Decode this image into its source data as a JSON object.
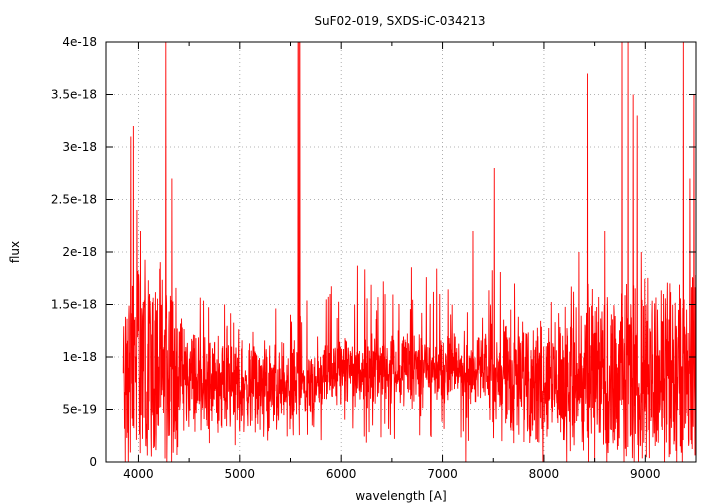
{
  "chart_data": {
    "type": "line",
    "title": "SuF02-019, SXDS-iC-034213",
    "xlabel": "wavelength [A]",
    "ylabel": "flux",
    "xlim": [
      3680,
      9500
    ],
    "ylim": [
      0,
      4e-18
    ],
    "xticks": [
      4000,
      5000,
      6000,
      7000,
      8000,
      9000
    ],
    "xtick_labels": [
      "4000",
      "5000",
      "6000",
      "7000",
      "8000",
      "9000"
    ],
    "yticks": [
      0,
      5e-19,
      1e-18,
      1.5e-18,
      2e-18,
      2.5e-18,
      3e-18,
      3.5e-18,
      4e-18
    ],
    "ytick_labels": [
      "0",
      "5e-19",
      "1e-18",
      "1.5e-18",
      "2e-18",
      "2.5e-18",
      "3e-18",
      "3.5e-18",
      "4e-18"
    ],
    "grid": true,
    "legend": "none",
    "series_color": "#ff0000",
    "spectrum": {
      "x_start": 3850,
      "x_end": 9500,
      "baseline": [
        [
          3850,
          8e-19
        ],
        [
          4000,
          9.5e-19
        ],
        [
          4300,
          8.5e-19
        ],
        [
          4700,
          7.5e-19
        ],
        [
          5000,
          7e-19
        ],
        [
          5500,
          7e-19
        ],
        [
          6000,
          8.5e-19
        ],
        [
          6500,
          9e-19
        ],
        [
          7000,
          8.8e-19
        ],
        [
          7500,
          8.5e-19
        ],
        [
          8000,
          8e-19
        ],
        [
          8500,
          8e-19
        ],
        [
          9000,
          8e-19
        ],
        [
          9500,
          9e-19
        ]
      ],
      "features": [
        [
          3870,
          2.55e-18
        ],
        [
          3900,
          2.75e-18
        ],
        [
          3925,
          3.1e-18
        ],
        [
          3950,
          3.2e-18
        ],
        [
          3985,
          2.4e-18
        ],
        [
          4020,
          2.2e-18
        ],
        [
          4110,
          1.6e-18
        ],
        [
          4270,
          4e-18
        ],
        [
          4330,
          2.7e-18
        ],
        [
          4850,
          1.5e-18
        ],
        [
          5577,
          4e-18
        ],
        [
          5592,
          4e-18
        ],
        [
          5890,
          1.6e-18
        ],
        [
          7300,
          2.2e-18
        ],
        [
          7510,
          2.8e-18
        ],
        [
          7710,
          1.7e-18
        ],
        [
          7990,
          2.2e-18
        ],
        [
          8345,
          2e-18
        ],
        [
          8430,
          3.7e-18
        ],
        [
          8600,
          2.2e-18
        ],
        [
          8770,
          4e-18
        ],
        [
          8830,
          4e-18
        ],
        [
          8880,
          3.5e-18
        ],
        [
          8920,
          3.3e-18
        ],
        [
          8960,
          2e-18
        ],
        [
          9310,
          4e-18
        ],
        [
          9375,
          4e-18
        ],
        [
          9440,
          2.7e-18
        ],
        [
          9480,
          3.5e-18
        ]
      ],
      "dips": [
        [
          3870,
          0
        ],
        [
          3900,
          0
        ],
        [
          7230,
          0
        ],
        [
          7990,
          0
        ],
        [
          8500,
          0
        ],
        [
          8620,
          0
        ],
        [
          8790,
          0
        ],
        [
          8890,
          0
        ],
        [
          9190,
          0
        ],
        [
          9310,
          0
        ],
        [
          9365,
          0
        ]
      ]
    }
  }
}
